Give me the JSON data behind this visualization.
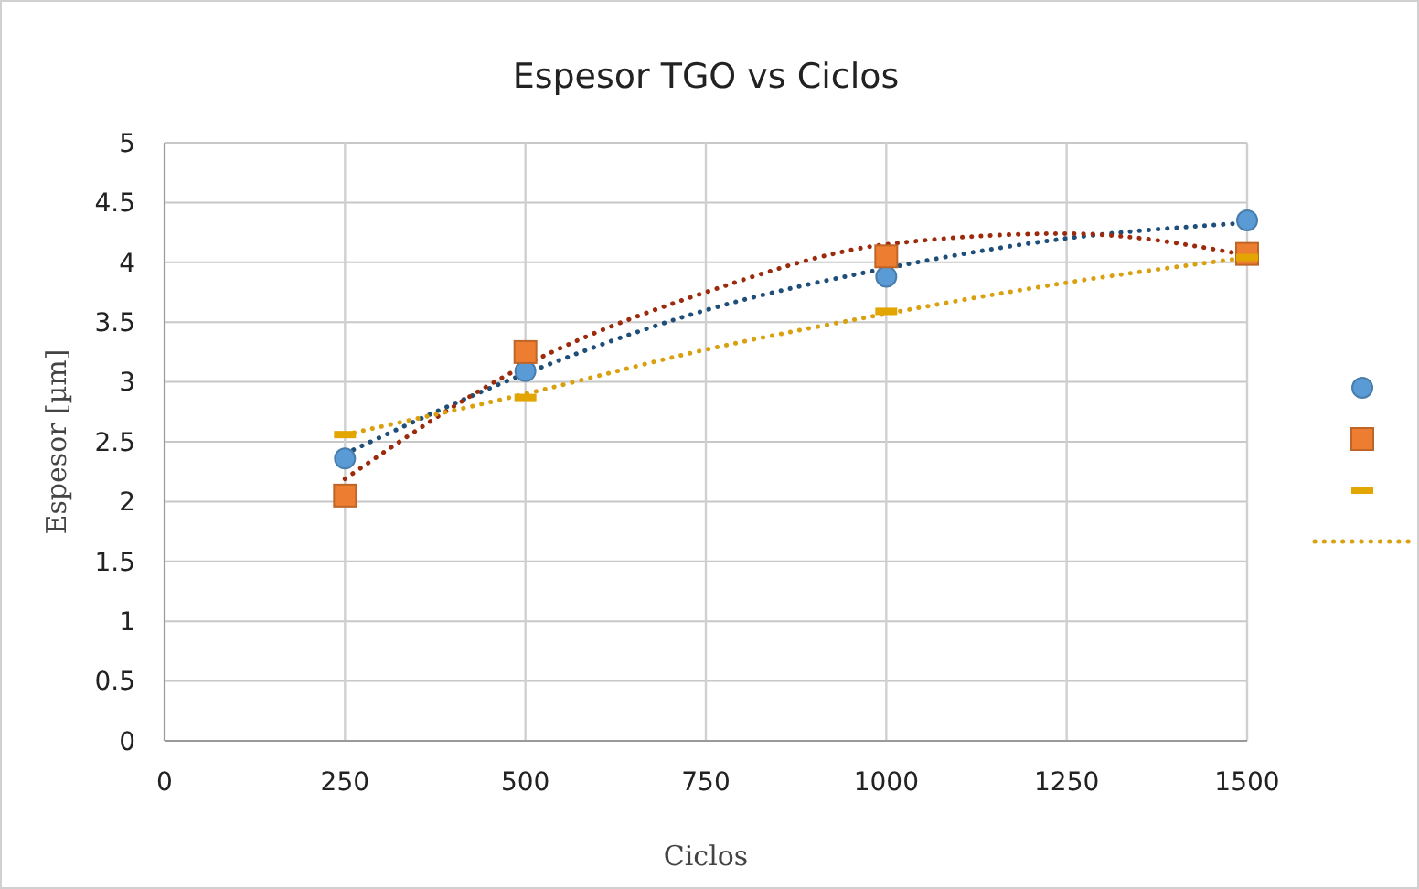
{
  "chart_data": {
    "type": "scatter",
    "title": "Espesor TGO vs Ciclos",
    "xlabel": "Ciclos",
    "ylabel": "Espesor [µm]",
    "xlim": [
      0,
      1500
    ],
    "xticks": [
      0,
      250,
      500,
      750,
      1000,
      1250,
      1500
    ],
    "ylim": [
      0,
      5
    ],
    "yticks": [
      0,
      0.5,
      1,
      1.5,
      2,
      2.5,
      3,
      3.5,
      4,
      4.5,
      5
    ],
    "grid": true,
    "series": [
      {
        "marker": "circle",
        "color": "#5b9bd5",
        "x": [
          250,
          500,
          1000,
          1500
        ],
        "values": [
          2.36,
          3.09,
          3.88,
          4.35
        ]
      },
      {
        "marker": "square",
        "color": "#ed7d31",
        "x": [
          250,
          500,
          1000,
          1500
        ],
        "values": [
          2.05,
          3.25,
          4.05,
          4.07
        ]
      },
      {
        "color": "#e3a500",
        "x": [
          250,
          500,
          1000,
          1500
        ],
        "values": [
          2.56,
          2.87,
          3.59,
          4.04
        ]
      },
      {
        "type": "line",
        "marker": "none",
        "line_style": "dotted",
        "color": "#1f4e79",
        "x": [
          250,
          500,
          750,
          1000,
          1250,
          1500
        ],
        "values": [
          2.4,
          3.07,
          3.6,
          3.95,
          4.2,
          4.33
        ]
      },
      {
        "type": "line",
        "marker": "none",
        "line_style": "dotted",
        "color": "#9c2a0c",
        "x": [
          250,
          500,
          750,
          1000,
          1250,
          1500
        ],
        "values": [
          2.19,
          3.14,
          3.75,
          4.15,
          4.24,
          4.06
        ]
      },
      {
        "type": "line",
        "marker": "none",
        "line_style": "dotted",
        "color": "#d9a010",
        "x": [
          250,
          500,
          750,
          1000,
          1250,
          1500
        ],
        "values": [
          2.56,
          2.9,
          3.27,
          3.57,
          3.83,
          4.04
        ]
      }
    ]
  }
}
